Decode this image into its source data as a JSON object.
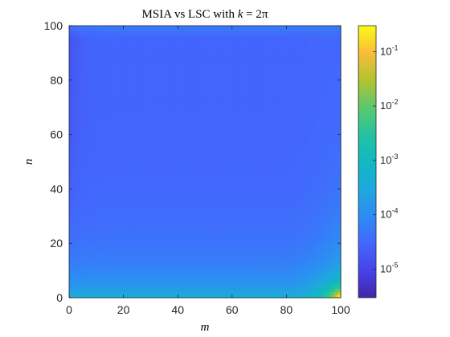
{
  "chart_data": {
    "type": "heatmap",
    "title": "MSIA vs LSC with k = 2π",
    "xlabel": "m",
    "ylabel": "n",
    "xlim": [
      0,
      100
    ],
    "ylim": [
      0,
      100
    ],
    "x_ticks": [
      0,
      20,
      40,
      60,
      80,
      100
    ],
    "y_ticks": [
      0,
      20,
      40,
      60,
      80,
      100
    ],
    "grid": false,
    "colormap": "parula",
    "colorbar": {
      "scale": "log",
      "range": [
        3e-06,
        0.3
      ],
      "ticks": [
        {
          "value": 0.1,
          "base": "10",
          "exp": "-1"
        },
        {
          "value": 0.01,
          "base": "10",
          "exp": "-2"
        },
        {
          "value": 0.001,
          "base": "10",
          "exp": "-3"
        },
        {
          "value": 0.0001,
          "base": "10",
          "exp": "-4"
        },
        {
          "value": 1e-05,
          "base": "10",
          "exp": "-5"
        }
      ]
    },
    "regions": [
      {
        "description": "most of domain (n > 30)",
        "approx_value": 3e-05
      },
      {
        "description": "band near n = 20",
        "approx_value": 0.0001
      },
      {
        "description": "band near n = 5",
        "approx_value": 0.0008
      },
      {
        "description": "corner m = 100, n = 0",
        "approx_value": 0.1
      }
    ]
  }
}
